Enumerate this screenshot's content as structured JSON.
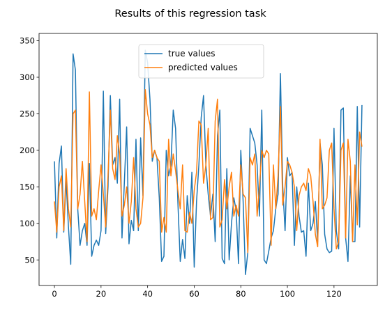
{
  "chart_data": {
    "type": "line",
    "title": "Results of this regression task",
    "xlabel": "",
    "ylabel": "",
    "xlim": [
      -6.6,
      138.6
    ],
    "ylim": [
      15,
      360
    ],
    "xticks": [
      0,
      20,
      40,
      60,
      80,
      100,
      120
    ],
    "yticks": [
      50,
      100,
      150,
      200,
      250,
      300,
      350
    ],
    "grid": false,
    "legend_position": "upper center",
    "series": [
      {
        "name": "true values",
        "color": "#1f77b4",
        "values": [
          185,
          80,
          182,
          206,
          88,
          160,
          96,
          44,
          332,
          310,
          120,
          70,
          90,
          100,
          70,
          182,
          55,
          70,
          77,
          70,
          90,
          281,
          86,
          150,
          275,
          180,
          190,
          155,
          270,
          80,
          155,
          232,
          72,
          104,
          90,
          215,
          90,
          217,
          138,
          337,
          320,
          270,
          185,
          200,
          190,
          135,
          48,
          55,
          200,
          165,
          180,
          255,
          230,
          128,
          48,
          78,
          52,
          138,
          100,
          170,
          40,
          130,
          180,
          245,
          275,
          180,
          140,
          110,
          140,
          75,
          220,
          255,
          52,
          45,
          175,
          50,
          100,
          135,
          118,
          45,
          200,
          130,
          30,
          60,
          230,
          220,
          210,
          180,
          110,
          255,
          50,
          45,
          62,
          80,
          90,
          120,
          140,
          305,
          150,
          90,
          190,
          165,
          170,
          70,
          150,
          110,
          88,
          90,
          55,
          155,
          90,
          100,
          130,
          75,
          210,
          180,
          85,
          65,
          60,
          62,
          230,
          90,
          65,
          255,
          258,
          80,
          48,
          165,
          75,
          75,
          260,
          95,
          262
        ]
      },
      {
        "name": "predicted values",
        "color": "#ff7f0e",
        "values": [
          130,
          88,
          150,
          165,
          90,
          175,
          120,
          95,
          250,
          255,
          120,
          140,
          185,
          130,
          75,
          280,
          110,
          120,
          105,
          145,
          180,
          140,
          95,
          165,
          255,
          175,
          160,
          220,
          195,
          110,
          125,
          150,
          100,
          130,
          190,
          120,
          95,
          100,
          135,
          283,
          250,
          235,
          190,
          200,
          190,
          185,
          88,
          108,
          88,
          215,
          165,
          195,
          172,
          145,
          120,
          180,
          90,
          88,
          115,
          100,
          145,
          170,
          240,
          235,
          155,
          180,
          230,
          105,
          108,
          240,
          270,
          95,
          105,
          160,
          120,
          150,
          170,
          110,
          125,
          110,
          180,
          140,
          135,
          60,
          190,
          180,
          195,
          110,
          150,
          200,
          190,
          200,
          195,
          70,
          180,
          120,
          165,
          260,
          125,
          150,
          185,
          180,
          170,
          150,
          90,
          138,
          150,
          155,
          145,
          175,
          165,
          130,
          85,
          68,
          215,
          120,
          125,
          135,
          200,
          210,
          120,
          65,
          75,
          200,
          210,
          80,
          215,
          185,
          75,
          180,
          98,
          225,
          205
        ]
      }
    ]
  }
}
